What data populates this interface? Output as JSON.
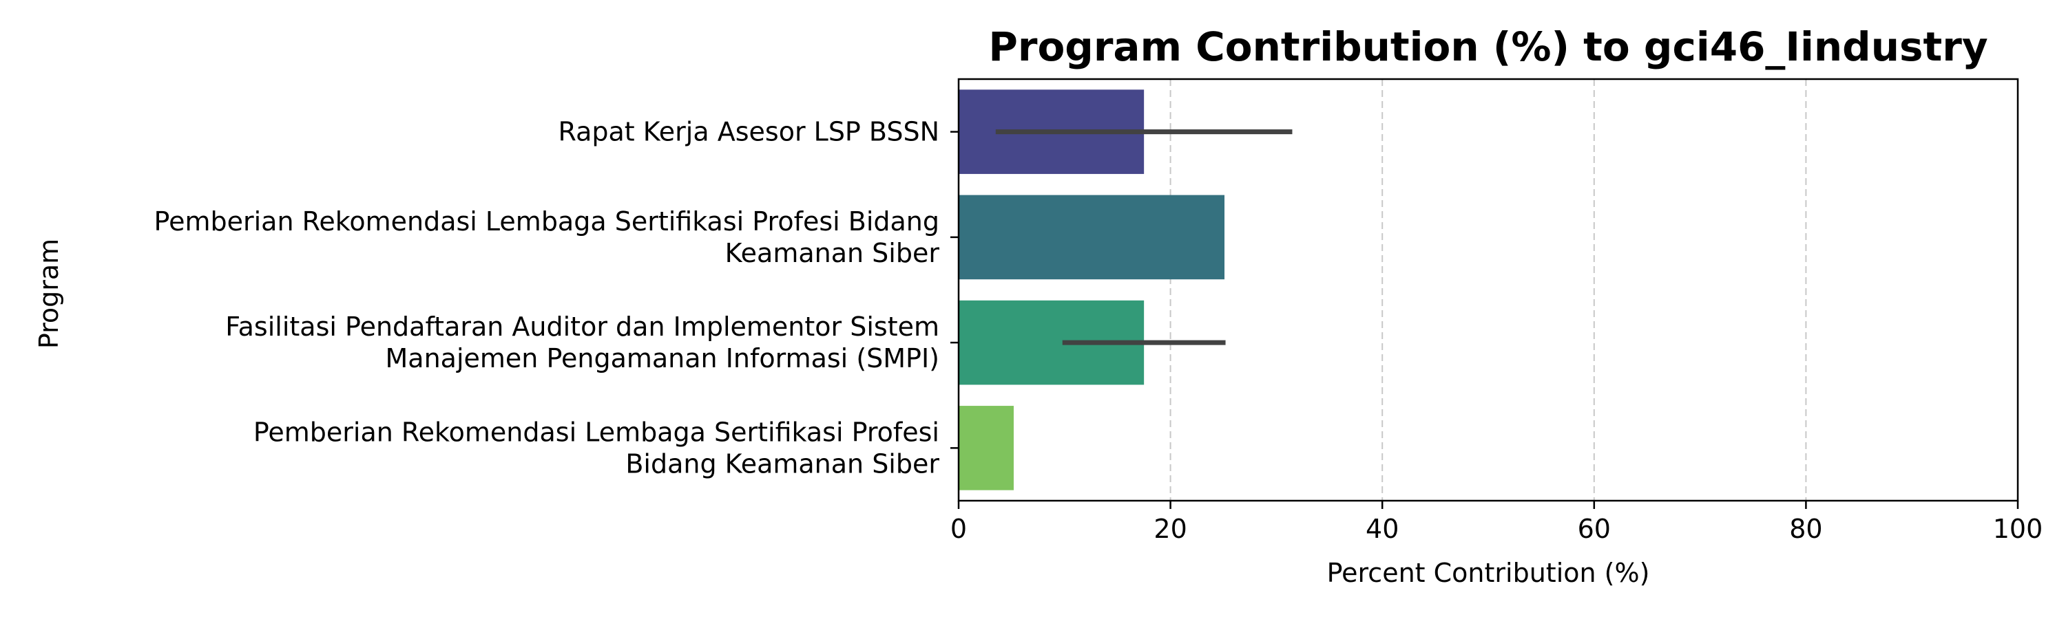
{
  "chart_data": {
    "type": "bar",
    "orientation": "horizontal",
    "title": "Program Contribution (%) to gci46_Iindustry",
    "xlabel": "Percent Contribution (%)",
    "ylabel": "Program",
    "xlim": [
      0,
      100
    ],
    "xticks": [
      "0",
      "20",
      "40",
      "60",
      "80",
      "100"
    ],
    "grid": "x-dashed",
    "categories": [
      [
        "Rapat Kerja Asesor LSP BSSN"
      ],
      [
        "Pemberian Rekomendasi Lembaga Sertifikasi Profesi Bidang",
        "Keamanan Siber"
      ],
      [
        "Fasilitasi Pendaftaran Auditor dan Implementor Sistem",
        "Manajemen Pengamanan Informasi (SMPI)"
      ],
      [
        "Pemberian Rekomendasi Lembaga Sertifikasi Profesi",
        "Bidang Keamanan Siber"
      ]
    ],
    "values": [
      17.5,
      25.1,
      17.5,
      5.2
    ],
    "error_bars": [
      [
        3.5,
        31.5
      ],
      null,
      [
        9.8,
        25.2
      ],
      null
    ],
    "colors": [
      "#46478a",
      "#35717f",
      "#339a78",
      "#7fc35d"
    ],
    "errorbar_color": "#424242"
  }
}
